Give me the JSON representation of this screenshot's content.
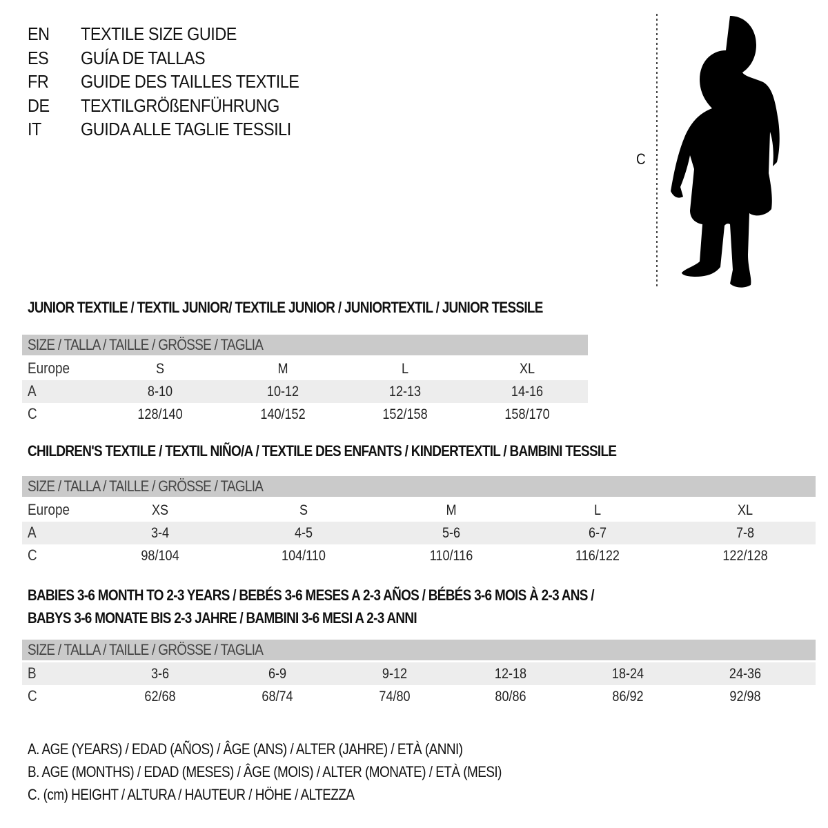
{
  "titles": [
    {
      "code": "EN",
      "text": "TEXTILE SIZE GUIDE"
    },
    {
      "code": "ES",
      "text": "GUÍA DE TALLAS"
    },
    {
      "code": "FR",
      "text": "GUIDE DES TAILLES TEXTILE"
    },
    {
      "code": "DE",
      "text": "TEXTILGRÖßENFÜHRUNG"
    },
    {
      "code": "IT",
      "text": "GUIDA ALLE TAGLIE TESSILI"
    }
  ],
  "figure": {
    "measure_label": "C",
    "icon": "child-silhouette"
  },
  "size_header": "SIZE / TALLA / TAILLE / GRÖSSE / TAGLIA",
  "junior": {
    "title": "JUNIOR TEXTILE / TEXTIL JUNIOR/ TEXTILE JUNIOR / JUNIORTEXTIL / JUNIOR TESSILE",
    "rows": [
      {
        "label": "Europe",
        "values": [
          "S",
          "M",
          "L",
          "XL"
        ]
      },
      {
        "label": "A",
        "values": [
          "8-10",
          "10-12",
          "12-13",
          "14-16"
        ]
      },
      {
        "label": "C",
        "values": [
          "128/140",
          "140/152",
          "152/158",
          "158/170"
        ]
      }
    ]
  },
  "children": {
    "title": "CHILDREN'S TEXTILE / TEXTIL NIÑO/A / TEXTILE DES ENFANTS / KINDERTEXTIL / BAMBINI TESSILE",
    "rows": [
      {
        "label": "Europe",
        "values": [
          "XS",
          "S",
          "M",
          "L",
          "XL"
        ]
      },
      {
        "label": "A",
        "values": [
          "3-4",
          "4-5",
          "5-6",
          "6-7",
          "7-8"
        ]
      },
      {
        "label": "C",
        "values": [
          "98/104",
          "104/110",
          "110/116",
          "116/122",
          "122/128"
        ]
      }
    ]
  },
  "babies": {
    "title_line1": "BABIES 3-6 MONTH TO 2-3 YEARS / BEBÉS 3-6 MESES A 2-3 AÑOS / BÉBÉS 3-6 MOIS À 2-3 ANS /",
    "title_line2": "BABYS 3-6 MONATE BIS 2-3 JAHRE / BAMBINI 3-6 MESI A 2-3 ANNI",
    "rows": [
      {
        "label": "B",
        "values": [
          "3-6",
          "6-9",
          "9-12",
          "12-18",
          "18-24",
          "24-36"
        ]
      },
      {
        "label": "C",
        "values": [
          "62/68",
          "68/74",
          "74/80",
          "80/86",
          "86/92",
          "92/98"
        ]
      }
    ]
  },
  "legend": [
    "A. AGE (YEARS) / EDAD (AÑOS) / ÂGE (ANS) / ALTER (JAHRE) / ETÀ (ANNI)",
    "B. AGE (MONTHS) / EDAD (MESES) / ÂGE (MOIS) / ALTER (MONATE) / ETÀ (MESI)",
    "C. (cm) HEIGHT / ALTURA / HAUTEUR / HÖHE / ALTEZZA"
  ]
}
